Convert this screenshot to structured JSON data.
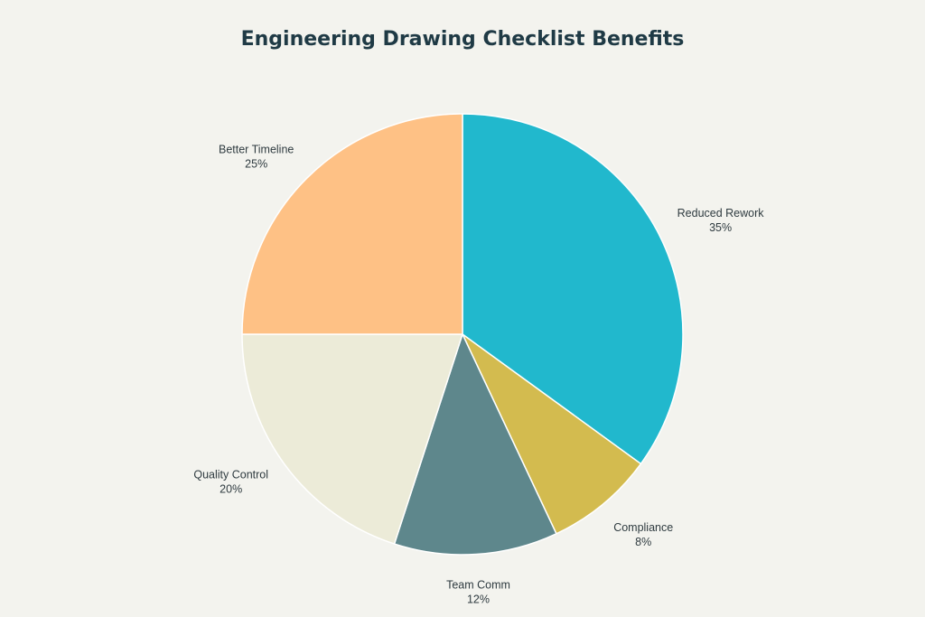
{
  "chart_data": {
    "type": "pie",
    "title": "Engineering Drawing Checklist Benefits",
    "start": "12 o'clock",
    "direction": "clockwise",
    "legend": "none",
    "slices": [
      {
        "label": "Reduced Rework",
        "value": 35,
        "display": "35%",
        "color": "#21b8cd"
      },
      {
        "label": "Compliance",
        "value": 8,
        "display": "8%",
        "color": "#d3bb4f"
      },
      {
        "label": "Team Comm",
        "value": 12,
        "display": "12%",
        "color": "#5e878c"
      },
      {
        "label": "Quality Control",
        "value": 20,
        "display": "20%",
        "color": "#ecebd8"
      },
      {
        "label": "Better Timeline",
        "value": 25,
        "display": "25%",
        "color": "#fec185"
      }
    ]
  }
}
